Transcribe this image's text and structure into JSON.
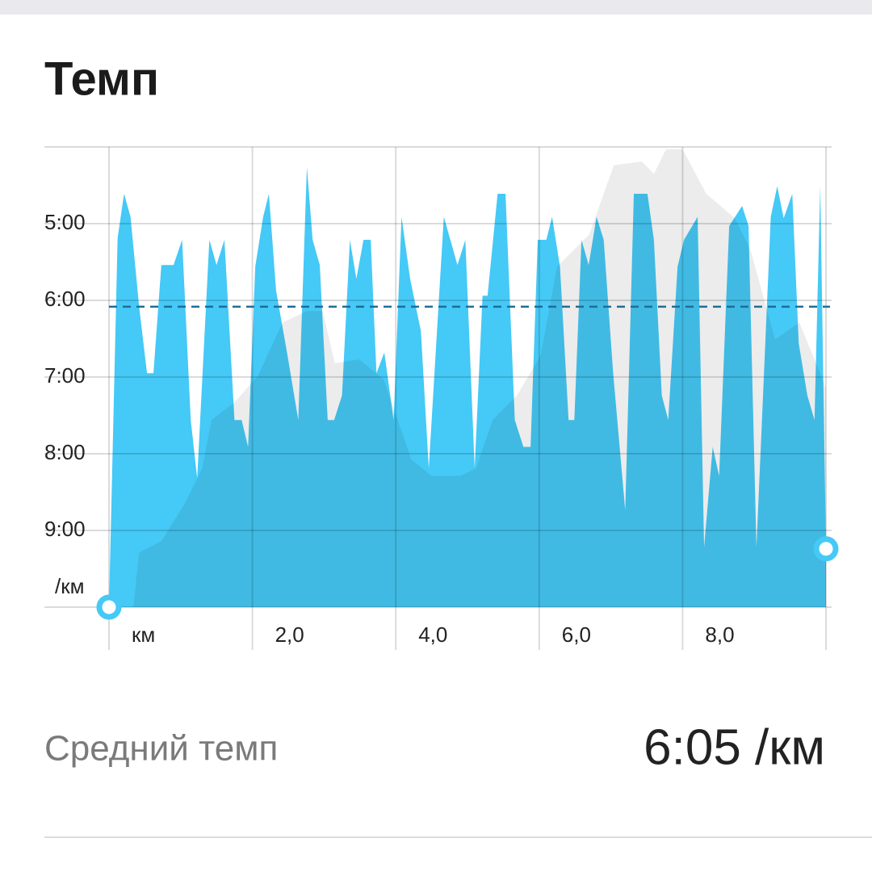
{
  "chart_data": {
    "type": "area",
    "title": "Темп",
    "xlim": [
      0,
      10
    ],
    "xticks": [
      {
        "value": 0,
        "label": "км"
      },
      {
        "value": 2,
        "label": "2,0"
      },
      {
        "value": 4,
        "label": "4,0"
      },
      {
        "value": 6,
        "label": "6,0"
      },
      {
        "value": 8,
        "label": "8,0"
      }
    ],
    "ylim": [
      10,
      4
    ],
    "yticks": [
      {
        "value": 5,
        "label": "5:00"
      },
      {
        "value": 6,
        "label": "6:00"
      },
      {
        "value": 7,
        "label": "7:00"
      },
      {
        "value": 8,
        "label": "8:00"
      },
      {
        "value": 9,
        "label": "9:00"
      },
      {
        "value": 10,
        "label": "/км"
      }
    ],
    "grid": true,
    "series": [
      {
        "color": "#45c9f6",
        "x": [
          0,
          0.12,
          0.21,
          0.3,
          0.42,
          0.53,
          0.62,
          0.73,
          0.9,
          1.02,
          1.14,
          1.23,
          1.4,
          1.5,
          1.61,
          1.75,
          1.85,
          1.94,
          2.04,
          2.15,
          2.23,
          2.33,
          2.49,
          2.64,
          2.76,
          2.84,
          2.94,
          3.05,
          3.14,
          3.25,
          3.36,
          3.45,
          3.55,
          3.65,
          3.73,
          3.84,
          3.97,
          4.08,
          4.2,
          4.35,
          4.46,
          4.67,
          4.86,
          4.97,
          5.1,
          5.21,
          5.28,
          5.42,
          5.53,
          5.66,
          5.78,
          5.88,
          5.98,
          6.1,
          6.18,
          6.29,
          6.41,
          6.49,
          6.59,
          6.69,
          6.8,
          6.9,
          7.03,
          7.2,
          7.32,
          7.51,
          7.6,
          7.71,
          7.8,
          7.93,
          8.02,
          8.21,
          8.3,
          8.42,
          8.51,
          8.65,
          8.83,
          8.92,
          9.03,
          9.23,
          9.32,
          9.41,
          9.53,
          9.62,
          9.74,
          9.84,
          9.92,
          10
        ],
        "values": [
          10,
          5.19,
          4.61,
          4.91,
          6.08,
          6.95,
          6.95,
          5.54,
          5.54,
          5.21,
          7.56,
          8.32,
          5.21,
          5.54,
          5.21,
          7.56,
          7.56,
          7.91,
          5.56,
          4.91,
          4.61,
          5.87,
          6.72,
          7.56,
          4.26,
          5.21,
          5.54,
          7.56,
          7.56,
          7.24,
          5.21,
          5.72,
          5.21,
          5.21,
          6.95,
          6.68,
          7.56,
          4.91,
          5.72,
          6.4,
          8.19,
          4.91,
          5.54,
          5.21,
          8.19,
          5.94,
          5.94,
          4.61,
          4.61,
          7.56,
          7.91,
          7.91,
          5.21,
          5.21,
          4.91,
          5.56,
          7.56,
          7.56,
          5.21,
          5.54,
          4.91,
          5.21,
          6.93,
          8.74,
          4.61,
          4.61,
          5.21,
          7.24,
          7.56,
          5.56,
          5.21,
          4.91,
          9.22,
          7.91,
          8.29,
          5.03,
          4.77,
          5.03,
          9.22,
          4.91,
          4.51,
          4.93,
          4.61,
          6.56,
          7.24,
          7.56,
          4.51,
          9.24
        ]
      },
      {
        "color": "#ececec",
        "x": [
          0,
          0.34,
          0.42,
          0.73,
          1.05,
          1.3,
          1.43,
          1.75,
          2.08,
          2.42,
          2.76,
          2.98,
          3.15,
          3.49,
          3.83,
          4.22,
          4.5,
          4.9,
          5.12,
          5.35,
          5.69,
          6.02,
          6.25,
          6.7,
          7.04,
          7.43,
          7.6,
          7.77,
          8.0,
          8.33,
          8.73,
          8.95,
          9.29,
          9.63,
          10
        ],
        "values": [
          10,
          10,
          9.29,
          9.14,
          8.66,
          8.19,
          7.56,
          7.33,
          6.98,
          6.29,
          6.14,
          6.14,
          6.82,
          6.77,
          7.03,
          8.08,
          8.29,
          8.29,
          8.19,
          7.56,
          7.24,
          6.72,
          5.56,
          5.14,
          4.24,
          4.19,
          4.35,
          4.03,
          4.03,
          4.61,
          4.93,
          5.35,
          6.51,
          6.29,
          7.14
        ]
      }
    ],
    "average": {
      "name": "Средний темп",
      "value": 6.083,
      "label": "6:05 /км",
      "color": "#1f6d97"
    }
  }
}
